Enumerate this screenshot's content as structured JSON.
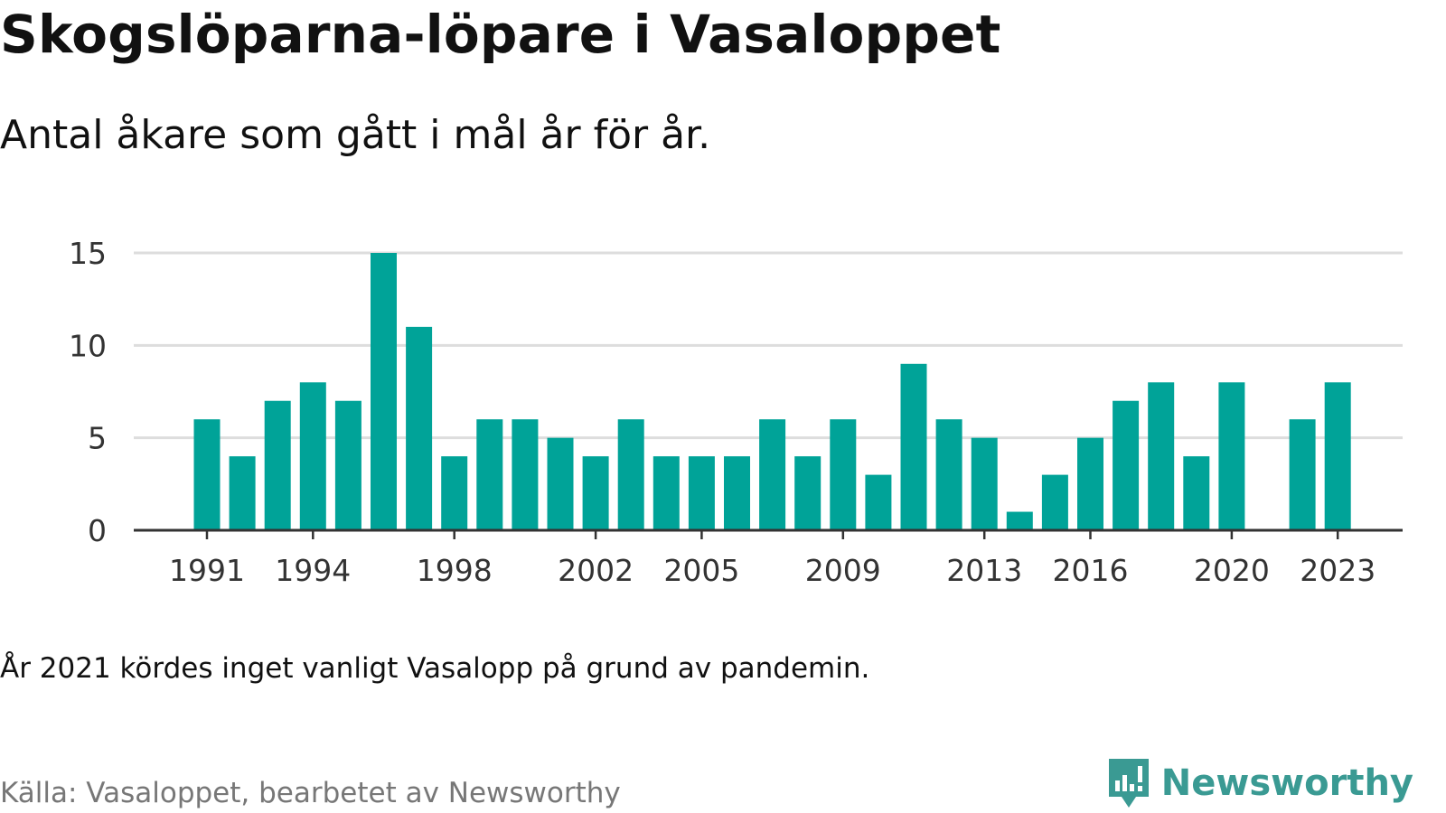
{
  "title": "Skogslöparna-löpare i Vasaloppet",
  "subtitle": "Antal åkare som gått i mål år för år.",
  "note": "År 2021 kördes inget vanligt Vasalopp på grund av pandemin.",
  "source": "Källa: Vasaloppet, bearbetet av Newsworthy",
  "brand": {
    "name": "Newsworthy",
    "icon": "newsworthy-logo-icon",
    "color": "#3a9a93"
  },
  "colors": {
    "bar": "#00a398",
    "grid": "#dddddd",
    "axis": "#333333"
  },
  "chart_data": {
    "type": "bar",
    "categories": [
      1991,
      1992,
      1993,
      1994,
      1995,
      1996,
      1997,
      1998,
      1999,
      2000,
      2001,
      2002,
      2003,
      2004,
      2005,
      2006,
      2007,
      2008,
      2009,
      2010,
      2011,
      2012,
      2013,
      2014,
      2015,
      2016,
      2017,
      2018,
      2019,
      2020,
      2021,
      2022,
      2023
    ],
    "values": [
      6,
      4,
      7,
      8,
      7,
      15,
      11,
      4,
      6,
      6,
      5,
      4,
      6,
      4,
      4,
      4,
      6,
      4,
      6,
      3,
      9,
      6,
      5,
      1,
      3,
      5,
      7,
      8,
      4,
      8,
      null,
      6,
      8
    ],
    "ylim": [
      0,
      15
    ],
    "yticks": [
      0,
      5,
      10,
      15
    ],
    "xticks": [
      1991,
      1994,
      1998,
      2002,
      2005,
      2009,
      2013,
      2016,
      2020,
      2023
    ],
    "grid": true,
    "xlabel": "",
    "ylabel": ""
  }
}
